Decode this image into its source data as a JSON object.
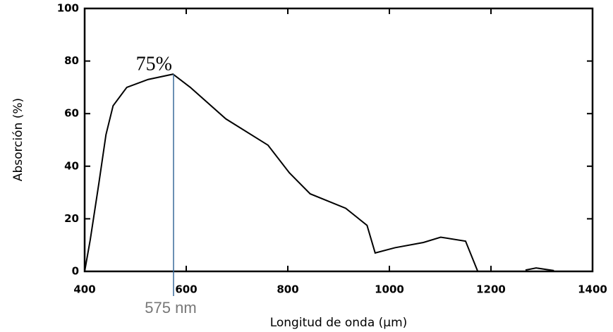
{
  "chart_data": {
    "type": "line",
    "xlabel": "Longitud de onda (µm)",
    "ylabel": "Absorción (%)",
    "x": [
      400,
      411,
      428,
      442,
      456,
      483,
      525,
      574,
      608,
      678,
      761,
      803,
      844,
      914,
      956,
      972,
      1011,
      1067,
      1101,
      1150,
      1174,
      1220,
      1268,
      1289,
      1324
    ],
    "values": [
      0,
      12,
      33.5,
      52,
      63,
      70,
      73,
      75,
      70,
      58,
      48,
      37.5,
      29.5,
      24,
      17.5,
      7,
      9,
      11,
      13,
      11.5,
      0,
      null,
      0.5,
      1.3,
      0.3
    ],
    "color": "#000000",
    "xlim": [
      400,
      1400
    ],
    "xticks": [
      400,
      600,
      800,
      1000,
      1200,
      1400
    ],
    "ylim": [
      0,
      100
    ],
    "yticks": [
      0,
      20,
      40,
      60,
      80,
      100
    ],
    "annotations": [
      {
        "label": "75%",
        "value": 75
      },
      {
        "label": "575 nm",
        "value": 575
      }
    ]
  }
}
